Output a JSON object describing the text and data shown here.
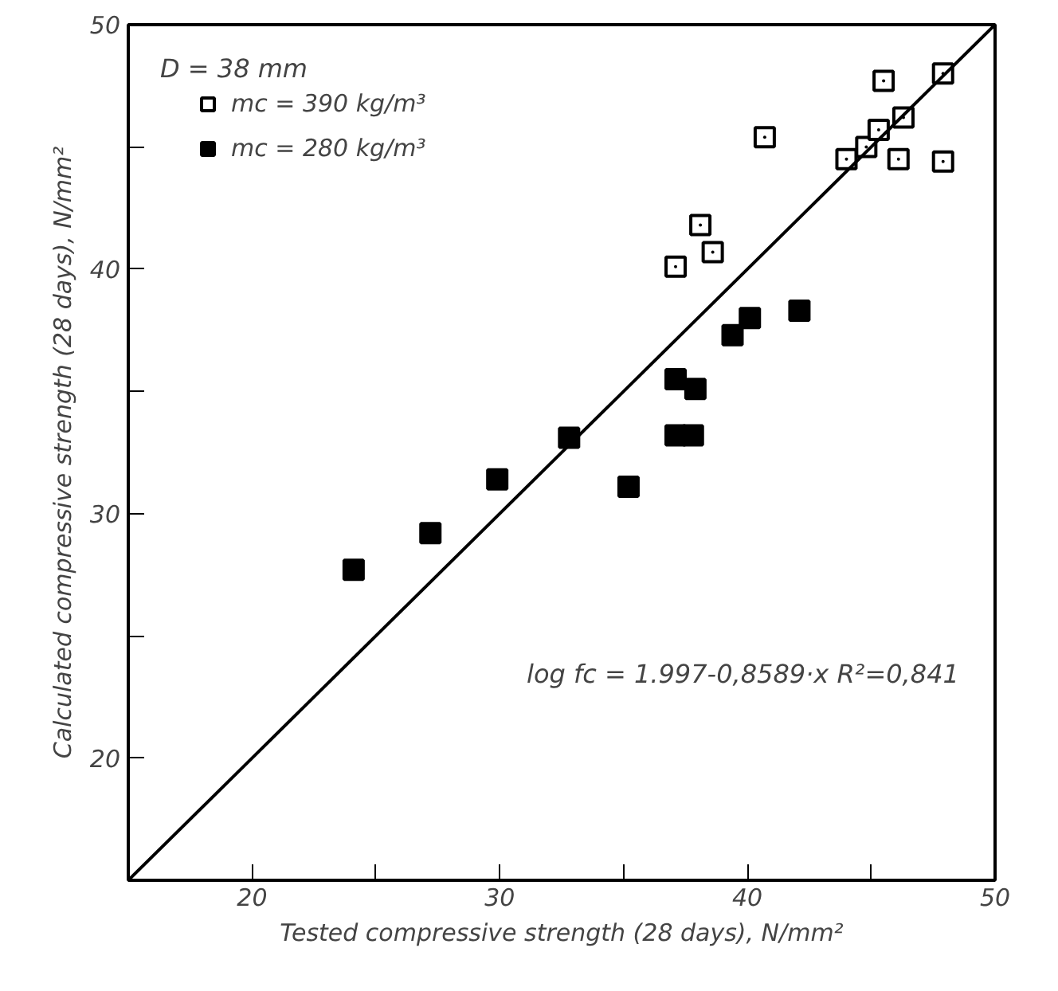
{
  "chart_data": {
    "type": "scatter",
    "xlabel": "Tested compressive strength (28 days), N/mm²",
    "ylabel": "Calculated compressive strength (28 days), N/mm²",
    "xlim": [
      15,
      50
    ],
    "ylim": [
      15,
      50
    ],
    "xticks": [
      20,
      {
        "value": 25,
        "label": null
      },
      30,
      {
        "value": 35,
        "label": null
      },
      40,
      {
        "value": 45,
        "label": null
      },
      50
    ],
    "yticks": [
      20,
      {
        "value": 25,
        "label": null
      },
      30,
      {
        "value": 35,
        "label": null
      },
      40,
      {
        "value": 45,
        "label": null
      },
      50
    ],
    "grid": false,
    "legend": "top left",
    "annotations": [
      "D = 38 mm",
      "log fc = 1.997-0,8589·x   R²=0,841"
    ],
    "series": [
      {
        "name": "mc = 390 kg/m³",
        "color": "#ffffff",
        "marker": "square",
        "x": [
          40.7,
          44.0,
          44.8,
          45.3,
          45.5,
          46.3,
          46.1,
          47.9,
          47.9,
          37.1,
          38.1,
          38.6
        ],
        "values": [
          45.4,
          44.5,
          45.0,
          45.7,
          47.7,
          46.2,
          44.5,
          48.0,
          44.4,
          40.1,
          41.8,
          40.7
        ]
      },
      {
        "name": "mc = 280 kg/m³",
        "color": "#000000",
        "marker": "square",
        "x": [
          24.1,
          27.2,
          29.9,
          32.8,
          35.2,
          37.1,
          37.1,
          37.8,
          37.9,
          39.4,
          40.1,
          42.1
        ],
        "values": [
          27.7,
          29.2,
          31.4,
          33.1,
          31.1,
          35.5,
          33.2,
          33.2,
          35.1,
          37.3,
          38.0,
          38.3
        ]
      },
      {
        "type": "line",
        "color": "#000000",
        "line_style": "solid",
        "x": [
          15,
          50
        ],
        "values": [
          15,
          50
        ]
      }
    ]
  }
}
